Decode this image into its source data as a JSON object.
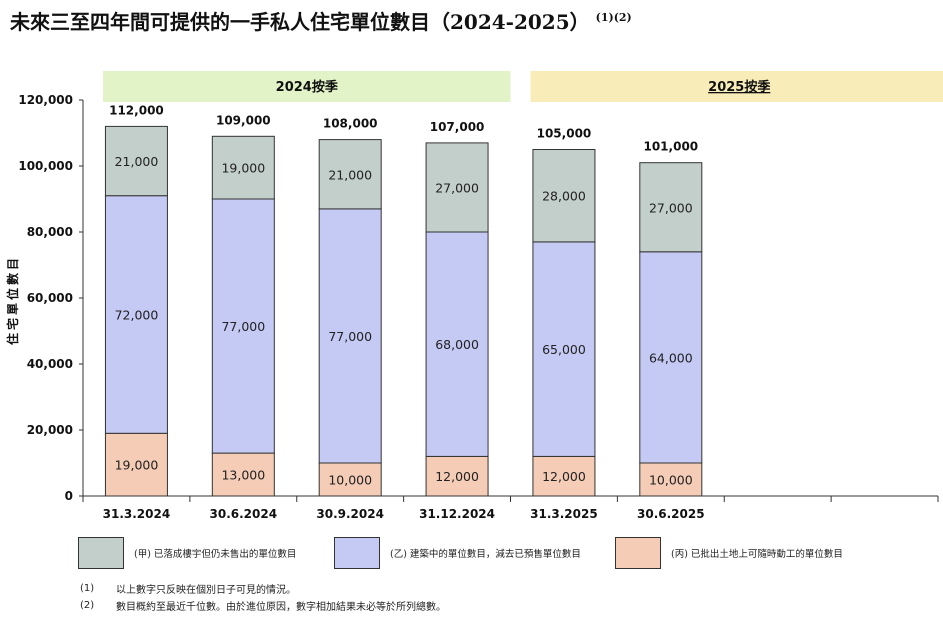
{
  "title": "未來三至四年間可提供的一手私人住宅單位數目（2024-2025）",
  "title_sup": "(1)(2)",
  "colors": {
    "segment_a": "#c3cfcb",
    "segment_b": "#c5caf5",
    "segment_c": "#f5ccb6",
    "band_2024": "#e1f3c7",
    "band_2025": "#f8edb8",
    "highlight_text": "#38c6e6"
  },
  "chart_data": {
    "type": "bar",
    "stacked": true,
    "categories": [
      "31.3.2024",
      "30.6.2024",
      "30.9.2024",
      "31.12.2024",
      "31.3.2025",
      "30.6.2025"
    ],
    "series": [
      {
        "name": "(丙) 已批出土地上可隨時動工的單位數目",
        "values": [
          19000,
          13000,
          10000,
          12000,
          12000,
          10000
        ],
        "labels": [
          "19,000",
          "13,000",
          "10,000",
          "12,000",
          "12,000",
          "10,000"
        ]
      },
      {
        "name": "(乙) 建築中的單位數目，減去已預售單位數目",
        "values": [
          72000,
          77000,
          77000,
          68000,
          65000,
          64000
        ],
        "labels": [
          "72,000",
          "77,000",
          "77,000",
          "68,000",
          "65,000",
          "64,000"
        ]
      },
      {
        "name": "(甲) 已落成樓宇但仍未售出的單位數目",
        "values": [
          21000,
          19000,
          21000,
          27000,
          28000,
          27000
        ],
        "labels": [
          "21,000",
          "19,000",
          "21,000",
          "27,000",
          "28,000",
          "27,000"
        ]
      }
    ],
    "totals": [
      "112,000",
      "109,000",
      "108,000",
      "107,000",
      "105,000",
      "101,000"
    ],
    "highlight_index": 5,
    "ylabel": "住宅單位數目",
    "ylim": [
      0,
      120000
    ],
    "yticks": [
      "0",
      "20,000",
      "40,000",
      "60,000",
      "80,000",
      "100,000",
      "120,000"
    ],
    "period_bands": [
      {
        "label": "2024按季",
        "start": 0,
        "span": 4
      },
      {
        "label": "2025按季",
        "start": 4,
        "span": 4
      }
    ],
    "slot_count": 8,
    "legend_placement": "bottom"
  },
  "legend": [
    {
      "text": "(甲) 已落成樓宇但仍未售出的單位數目",
      "color": "#c3cfcb"
    },
    {
      "text": "(乙) 建築中的單位數目，減去已預售單位數目",
      "color": "#c5caf5"
    },
    {
      "text": "(丙) 已批出土地上可隨時動工的單位數目",
      "color": "#f5ccb6"
    }
  ],
  "notes": [
    {
      "num": "(1)",
      "text": "以上數字只反映在個別日子可見的情況。"
    },
    {
      "num": "(2)",
      "text": "數目概約至最近千位數。由於進位原因，數字相加結果未必等於所列總數。"
    }
  ]
}
